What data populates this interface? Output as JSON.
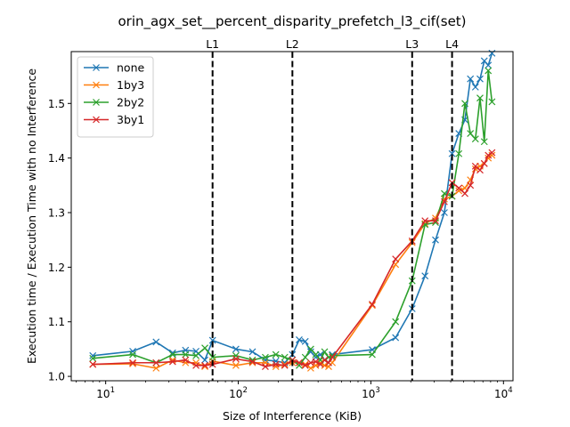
{
  "chart_data": {
    "type": "line",
    "title": "orin_agx_set__percent_disparity_prefetch_l3_cif(set)",
    "xlabel": "Size of Interference (KiB)",
    "ylabel": "Execution time / Execution Time with no Interference",
    "xscale": "log",
    "xlim": [
      5.5,
      11800
    ],
    "ylim": [
      0.992,
      1.595
    ],
    "x_ticks": [
      {
        "value": 10,
        "base": "10",
        "exp": "1"
      },
      {
        "value": 100,
        "base": "10",
        "exp": "2"
      },
      {
        "value": 1000,
        "base": "10",
        "exp": "3"
      },
      {
        "value": 10000,
        "base": "10",
        "exp": "4"
      }
    ],
    "y_ticks": [
      {
        "value": 1.0,
        "label": "1.0"
      },
      {
        "value": 1.1,
        "label": "1.1"
      },
      {
        "value": 1.2,
        "label": "1.2"
      },
      {
        "value": 1.3,
        "label": "1.3"
      },
      {
        "value": 1.4,
        "label": "1.4"
      },
      {
        "value": 1.5,
        "label": "1.5"
      }
    ],
    "grid": false,
    "legend_position": "top-left",
    "vlines": [
      {
        "label": "L1",
        "x": 64
      },
      {
        "label": "L2",
        "x": 256
      },
      {
        "label": "L3",
        "x": 2048
      },
      {
        "label": "L4",
        "x": 4096
      }
    ],
    "series": [
      {
        "name": "none",
        "color": "#1f77b4",
        "x": [
          8,
          16,
          24,
          32,
          40,
          48,
          56,
          64,
          96,
          128,
          160,
          192,
          224,
          256,
          288,
          320,
          352,
          384,
          416,
          448,
          480,
          512,
          1024,
          1536,
          2048,
          2560,
          3072,
          3584,
          4096,
          4608,
          5120,
          5632,
          6144,
          6656,
          7168,
          7680,
          8192
        ],
        "y": [
          1.038,
          1.046,
          1.063,
          1.043,
          1.048,
          1.046,
          1.03,
          1.066,
          1.05,
          1.045,
          1.03,
          1.028,
          1.025,
          1.04,
          1.067,
          1.064,
          1.045,
          1.035,
          1.04,
          1.03,
          1.025,
          1.04,
          1.049,
          1.071,
          1.124,
          1.184,
          1.25,
          1.3,
          1.408,
          1.445,
          1.47,
          1.545,
          1.53,
          1.545,
          1.578,
          1.57,
          1.592
        ]
      },
      {
        "name": "1by3",
        "color": "#ff7f0e",
        "x": [
          8,
          16,
          24,
          32,
          40,
          48,
          56,
          64,
          96,
          128,
          160,
          192,
          224,
          256,
          288,
          320,
          352,
          384,
          416,
          448,
          480,
          512,
          1024,
          1536,
          2048,
          2560,
          3072,
          3584,
          4096,
          4608,
          5120,
          5632,
          6144,
          6656,
          7168,
          7680,
          8192
        ],
        "y": [
          1.022,
          1.023,
          1.015,
          1.03,
          1.025,
          1.025,
          1.018,
          1.028,
          1.02,
          1.025,
          1.025,
          1.018,
          1.022,
          1.025,
          1.025,
          1.022,
          1.015,
          1.02,
          1.025,
          1.02,
          1.018,
          1.025,
          1.13,
          1.205,
          1.245,
          1.28,
          1.29,
          1.325,
          1.33,
          1.34,
          1.345,
          1.36,
          1.38,
          1.385,
          1.39,
          1.4,
          1.405
        ]
      },
      {
        "name": "2by2",
        "color": "#2ca02c",
        "x": [
          8,
          16,
          24,
          32,
          40,
          48,
          56,
          64,
          96,
          128,
          160,
          192,
          224,
          256,
          288,
          320,
          352,
          384,
          416,
          448,
          480,
          512,
          1024,
          1536,
          2048,
          2560,
          3072,
          3584,
          4096,
          4608,
          5120,
          5632,
          6144,
          6656,
          7168,
          7680,
          8192
        ],
        "y": [
          1.033,
          1.04,
          1.025,
          1.04,
          1.04,
          1.038,
          1.052,
          1.035,
          1.038,
          1.03,
          1.035,
          1.04,
          1.035,
          1.03,
          1.02,
          1.035,
          1.05,
          1.04,
          1.03,
          1.045,
          1.035,
          1.038,
          1.04,
          1.1,
          1.175,
          1.278,
          1.282,
          1.335,
          1.33,
          1.408,
          1.5,
          1.445,
          1.435,
          1.51,
          1.43,
          1.56,
          1.503
        ]
      },
      {
        "name": "3by1",
        "color": "#d62728",
        "x": [
          8,
          16,
          24,
          32,
          40,
          48,
          56,
          64,
          96,
          128,
          160,
          192,
          224,
          256,
          288,
          320,
          352,
          384,
          416,
          448,
          480,
          512,
          1024,
          1536,
          2048,
          2560,
          3072,
          3584,
          4096,
          4608,
          5120,
          5632,
          6144,
          6656,
          7168,
          7680,
          8192
        ],
        "y": [
          1.022,
          1.025,
          1.025,
          1.027,
          1.03,
          1.02,
          1.02,
          1.022,
          1.032,
          1.027,
          1.018,
          1.022,
          1.02,
          1.03,
          1.025,
          1.02,
          1.025,
          1.027,
          1.022,
          1.03,
          1.025,
          1.035,
          1.132,
          1.215,
          1.248,
          1.285,
          1.285,
          1.32,
          1.355,
          1.345,
          1.335,
          1.35,
          1.385,
          1.378,
          1.39,
          1.405,
          1.41
        ]
      }
    ]
  }
}
